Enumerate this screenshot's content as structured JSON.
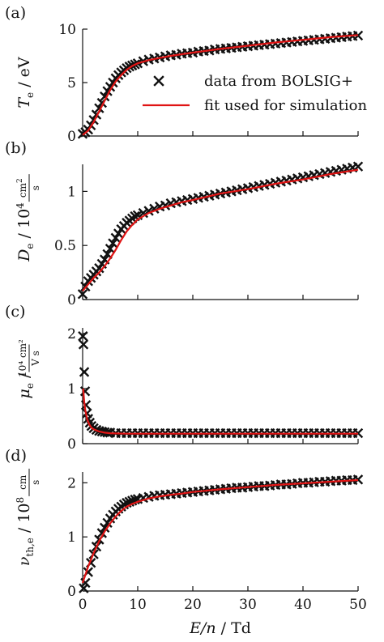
{
  "chart_data": [
    {
      "type": "scatter",
      "panel_label": "(a)",
      "ylabel": {
        "symbol": "T",
        "sub": "e",
        "unit": "eV"
      },
      "xlim": [
        0,
        50
      ],
      "ylim": [
        0,
        10
      ],
      "yticks": [
        "0",
        "5",
        "10"
      ],
      "ytick_values": [
        0,
        5,
        10
      ],
      "legend": {
        "position": "right",
        "markers_label": "data from BOLSIG+",
        "fit_label": "fit used for simulation"
      },
      "series": [
        {
          "kind": "markers",
          "x": [
            0,
            0.5,
            1,
            1.5,
            2,
            2.5,
            3,
            3.5,
            4,
            4.5,
            5,
            5.5,
            6,
            6.5,
            7,
            7.5,
            8,
            8.5,
            9,
            9.5,
            10,
            11,
            12,
            13,
            14,
            15,
            16,
            17,
            18,
            19,
            20,
            21,
            22,
            23,
            24,
            25,
            26,
            27,
            28,
            29,
            30,
            31,
            32,
            33,
            34,
            35,
            36,
            37,
            38,
            39,
            40,
            41,
            42,
            43,
            44,
            45,
            46,
            47,
            48,
            49,
            50
          ],
          "y": [
            0.2,
            0.35,
            0.6,
            1.0,
            1.5,
            2.0,
            2.6,
            3.1,
            3.7,
            4.2,
            4.6,
            5.0,
            5.4,
            5.7,
            5.95,
            6.15,
            6.35,
            6.5,
            6.6,
            6.7,
            6.8,
            7.0,
            7.15,
            7.25,
            7.35,
            7.45,
            7.55,
            7.6,
            7.7,
            7.75,
            7.8,
            7.9,
            7.95,
            8.0,
            8.1,
            8.15,
            8.2,
            8.25,
            8.3,
            8.35,
            8.4,
            8.45,
            8.5,
            8.55,
            8.6,
            8.65,
            8.7,
            8.75,
            8.8,
            8.85,
            8.9,
            8.95,
            9.0,
            9.05,
            9.1,
            9.15,
            9.2,
            9.25,
            9.3,
            9.35,
            9.4
          ]
        },
        {
          "kind": "fit",
          "x": [
            0,
            1,
            2,
            3,
            4,
            5,
            6,
            7,
            8,
            9,
            10,
            12,
            14,
            16,
            18,
            20,
            25,
            30,
            35,
            40,
            45,
            50
          ],
          "y": [
            0.1,
            0.5,
            1.3,
            2.3,
            3.3,
            4.3,
            5.1,
            5.7,
            6.2,
            6.55,
            6.8,
            7.1,
            7.3,
            7.5,
            7.65,
            7.8,
            8.15,
            8.45,
            8.75,
            9.0,
            9.25,
            9.45
          ]
        }
      ]
    },
    {
      "type": "scatter",
      "panel_label": "(b)",
      "ylabel": {
        "symbol": "D",
        "sub": "e",
        "unit_pre": "10",
        "unit_exp": "4",
        "frac_num": "cm",
        "frac_num_exp": "2",
        "frac_den": "s"
      },
      "xlim": [
        0,
        50
      ],
      "ylim": [
        0,
        1.25
      ],
      "yticks": [
        "0",
        "0.5",
        "1"
      ],
      "ytick_values": [
        0,
        0.5,
        1
      ],
      "series": [
        {
          "kind": "markers",
          "x": [
            0,
            0.5,
            1,
            1.5,
            2,
            2.5,
            3,
            3.5,
            4,
            4.5,
            5,
            5.5,
            6,
            6.5,
            7,
            7.5,
            8,
            8.5,
            9,
            9.5,
            10,
            11,
            12,
            13,
            14,
            15,
            16,
            17,
            18,
            19,
            20,
            21,
            22,
            23,
            24,
            25,
            26,
            27,
            28,
            29,
            30,
            31,
            32,
            33,
            34,
            35,
            36,
            37,
            38,
            39,
            40,
            41,
            42,
            43,
            44,
            45,
            46,
            47,
            48,
            49,
            50
          ],
          "y": [
            0.05,
            0.12,
            0.17,
            0.2,
            0.23,
            0.26,
            0.29,
            0.33,
            0.37,
            0.42,
            0.47,
            0.52,
            0.57,
            0.61,
            0.65,
            0.68,
            0.71,
            0.73,
            0.75,
            0.77,
            0.78,
            0.8,
            0.82,
            0.84,
            0.86,
            0.87,
            0.89,
            0.9,
            0.91,
            0.92,
            0.93,
            0.94,
            0.95,
            0.96,
            0.97,
            0.98,
            0.99,
            1.0,
            1.01,
            1.02,
            1.03,
            1.04,
            1.05,
            1.06,
            1.07,
            1.08,
            1.09,
            1.1,
            1.11,
            1.12,
            1.13,
            1.14,
            1.15,
            1.16,
            1.17,
            1.18,
            1.19,
            1.2,
            1.21,
            1.22,
            1.23
          ]
        },
        {
          "kind": "fit",
          "x": [
            0,
            1,
            2,
            3,
            4,
            5,
            6,
            7,
            8,
            9,
            10,
            12,
            14,
            16,
            18,
            20,
            25,
            30,
            35,
            40,
            45,
            50
          ],
          "y": [
            0.08,
            0.14,
            0.2,
            0.25,
            0.31,
            0.38,
            0.46,
            0.55,
            0.63,
            0.69,
            0.74,
            0.8,
            0.84,
            0.87,
            0.9,
            0.92,
            0.98,
            1.02,
            1.07,
            1.11,
            1.16,
            1.2
          ]
        }
      ]
    },
    {
      "type": "scatter",
      "panel_label": "(c)",
      "ylabel": {
        "symbol": "μ",
        "sub": "e",
        "frac_num": "10⁴ cm²",
        "frac_den": "V s"
      },
      "xlim": [
        0,
        50
      ],
      "ylim": [
        0,
        2.1
      ],
      "yticks": [
        "0",
        "1",
        "2"
      ],
      "ytick_values": [
        0,
        1,
        2
      ],
      "series": [
        {
          "kind": "markers",
          "x": [
            0.05,
            0.15,
            0.3,
            0.45,
            0.6,
            0.8,
            1.0,
            1.3,
            1.6,
            2.0,
            2.5,
            3,
            3.5,
            4,
            4.5,
            5,
            6,
            7,
            8,
            9,
            10,
            11,
            12,
            13,
            14,
            15,
            16,
            17,
            18,
            19,
            20,
            21,
            22,
            23,
            24,
            25,
            26,
            27,
            28,
            29,
            30,
            31,
            32,
            33,
            34,
            35,
            36,
            37,
            38,
            39,
            40,
            41,
            42,
            43,
            44,
            45,
            46,
            47,
            48,
            49,
            50
          ],
          "y": [
            1.95,
            1.8,
            1.3,
            0.95,
            0.7,
            0.55,
            0.45,
            0.38,
            0.32,
            0.28,
            0.25,
            0.23,
            0.22,
            0.21,
            0.2,
            0.2,
            0.19,
            0.19,
            0.19,
            0.19,
            0.19,
            0.19,
            0.19,
            0.19,
            0.19,
            0.19,
            0.19,
            0.19,
            0.19,
            0.19,
            0.19,
            0.19,
            0.19,
            0.19,
            0.19,
            0.19,
            0.19,
            0.19,
            0.19,
            0.19,
            0.19,
            0.19,
            0.19,
            0.19,
            0.19,
            0.19,
            0.19,
            0.19,
            0.19,
            0.19,
            0.19,
            0.19,
            0.19,
            0.19,
            0.19,
            0.19,
            0.19,
            0.19,
            0.19,
            0.19,
            0.19
          ]
        },
        {
          "kind": "fit",
          "x": [
            0.1,
            0.3,
            0.5,
            0.8,
            1.2,
            1.6,
            2,
            3,
            4,
            5,
            6,
            8,
            10,
            15,
            20,
            30,
            40,
            50
          ],
          "y": [
            1.0,
            0.75,
            0.6,
            0.45,
            0.35,
            0.29,
            0.26,
            0.22,
            0.2,
            0.19,
            0.185,
            0.18,
            0.18,
            0.18,
            0.18,
            0.18,
            0.18,
            0.18
          ]
        }
      ]
    },
    {
      "type": "scatter",
      "panel_label": "(d)",
      "ylabel": {
        "symbol": "ν",
        "sub": "th,e",
        "unit_pre": "10",
        "unit_exp": "8",
        "frac_num": "cm",
        "frac_den": "s"
      },
      "xlim": [
        0,
        50
      ],
      "ylim": [
        0,
        2.2
      ],
      "yticks": [
        "0",
        "1",
        "2"
      ],
      "ytick_values": [
        0,
        1,
        2
      ],
      "xticks": [
        "0",
        "10",
        "20",
        "30",
        "40",
        "50"
      ],
      "xtick_values": [
        0,
        10,
        20,
        30,
        40,
        50
      ],
      "xlabel": {
        "symbol": "E/n",
        "unit": "Td"
      },
      "series": [
        {
          "kind": "markers",
          "x": [
            0.2,
            0.5,
            1,
            1.5,
            2,
            2.5,
            3,
            3.5,
            4,
            4.5,
            5,
            5.5,
            6,
            6.5,
            7,
            7.5,
            8,
            8.5,
            9,
            9.5,
            10,
            11,
            12,
            13,
            14,
            15,
            16,
            17,
            18,
            19,
            20,
            21,
            22,
            23,
            24,
            25,
            26,
            27,
            28,
            29,
            30,
            31,
            32,
            33,
            34,
            35,
            36,
            37,
            38,
            39,
            40,
            41,
            42,
            43,
            44,
            45,
            46,
            47,
            48,
            49,
            50
          ],
          "y": [
            0.05,
            0.15,
            0.35,
            0.52,
            0.68,
            0.82,
            0.95,
            1.07,
            1.17,
            1.26,
            1.34,
            1.41,
            1.47,
            1.52,
            1.56,
            1.6,
            1.63,
            1.65,
            1.67,
            1.69,
            1.7,
            1.72,
            1.74,
            1.76,
            1.77,
            1.78,
            1.79,
            1.8,
            1.81,
            1.82,
            1.83,
            1.84,
            1.85,
            1.86,
            1.87,
            1.88,
            1.89,
            1.9,
            1.91,
            1.91,
            1.92,
            1.93,
            1.94,
            1.94,
            1.95,
            1.96,
            1.97,
            1.97,
            1.98,
            1.99,
            2.0,
            2.0,
            2.01,
            2.02,
            2.02,
            2.03,
            2.04,
            2.04,
            2.05,
            2.05,
            2.06
          ]
        },
        {
          "kind": "fit",
          "x": [
            0,
            0.5,
            1,
            2,
            3,
            4,
            5,
            6,
            7,
            8,
            9,
            10,
            12,
            14,
            16,
            18,
            20,
            25,
            30,
            35,
            40,
            45,
            50
          ],
          "y": [
            0.15,
            0.3,
            0.45,
            0.7,
            0.92,
            1.1,
            1.25,
            1.38,
            1.48,
            1.56,
            1.61,
            1.65,
            1.71,
            1.75,
            1.78,
            1.8,
            1.83,
            1.88,
            1.92,
            1.96,
            1.99,
            2.02,
            2.05
          ]
        }
      ]
    }
  ]
}
